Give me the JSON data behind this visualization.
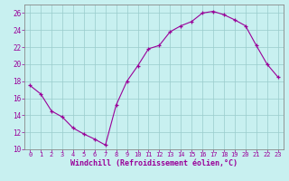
{
  "x": [
    0,
    1,
    2,
    3,
    4,
    5,
    6,
    7,
    8,
    9,
    10,
    11,
    12,
    13,
    14,
    15,
    16,
    17,
    18,
    19,
    20,
    21,
    22,
    23
  ],
  "y": [
    17.5,
    16.5,
    14.5,
    13.8,
    12.5,
    11.8,
    11.2,
    10.5,
    15.2,
    18.0,
    19.8,
    21.8,
    22.2,
    23.8,
    24.5,
    25.0,
    26.0,
    26.2,
    25.8,
    25.2,
    24.5,
    22.2,
    20.0,
    18.5
  ],
  "line_color": "#990099",
  "marker": "+",
  "background_color": "#c8f0f0",
  "grid_color": "#99cccc",
  "xlabel": "Windchill (Refroidissement éolien,°C)",
  "xlabel_color": "#990099",
  "tick_color": "#990099",
  "spine_color": "#888888",
  "ylim": [
    10,
    27
  ],
  "xlim": [
    -0.5,
    23.5
  ],
  "yticks": [
    10,
    12,
    14,
    16,
    18,
    20,
    22,
    24,
    26
  ],
  "xticks": [
    0,
    1,
    2,
    3,
    4,
    5,
    6,
    7,
    8,
    9,
    10,
    11,
    12,
    13,
    14,
    15,
    16,
    17,
    18,
    19,
    20,
    21,
    22,
    23
  ]
}
